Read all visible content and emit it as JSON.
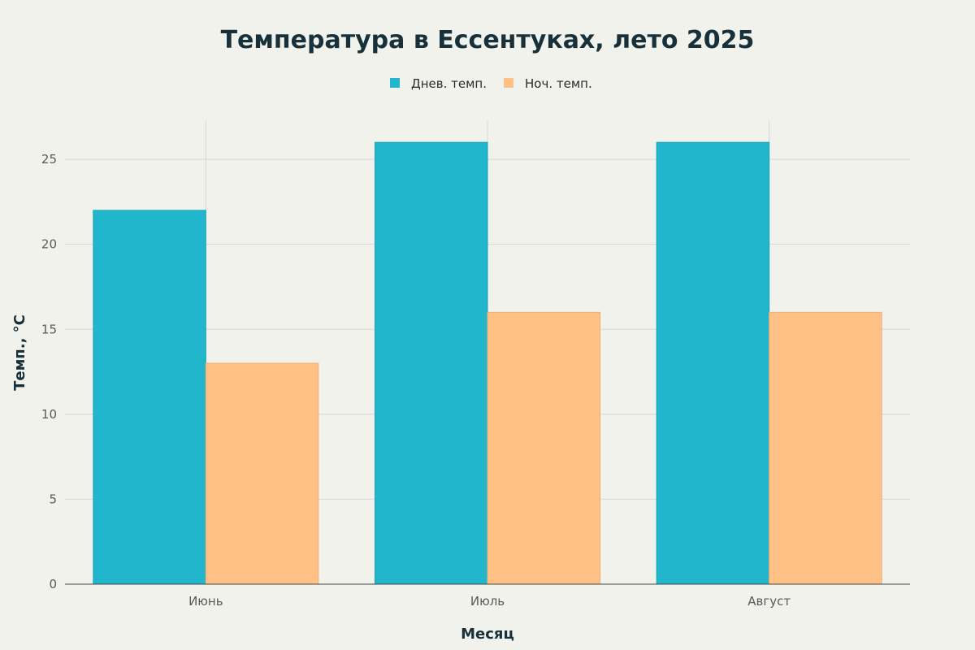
{
  "chart_data": {
    "type": "bar",
    "title": "Температура в Ессентуках, лето 2025",
    "xlabel": "Месяц",
    "ylabel": "Темп., °C",
    "categories": [
      "Июнь",
      "Июль",
      "Август"
    ],
    "series": [
      {
        "name": "Днев. темп.",
        "values": [
          22,
          26,
          26
        ],
        "color": "#21b6cc"
      },
      {
        "name": "Ноч. темп.",
        "values": [
          13,
          16,
          16
        ],
        "color": "#ffc186"
      }
    ],
    "ylim": [
      0,
      27.3
    ],
    "yticks": [
      0,
      5,
      10,
      15,
      20,
      25
    ],
    "grid": true,
    "legend": "top-center"
  }
}
